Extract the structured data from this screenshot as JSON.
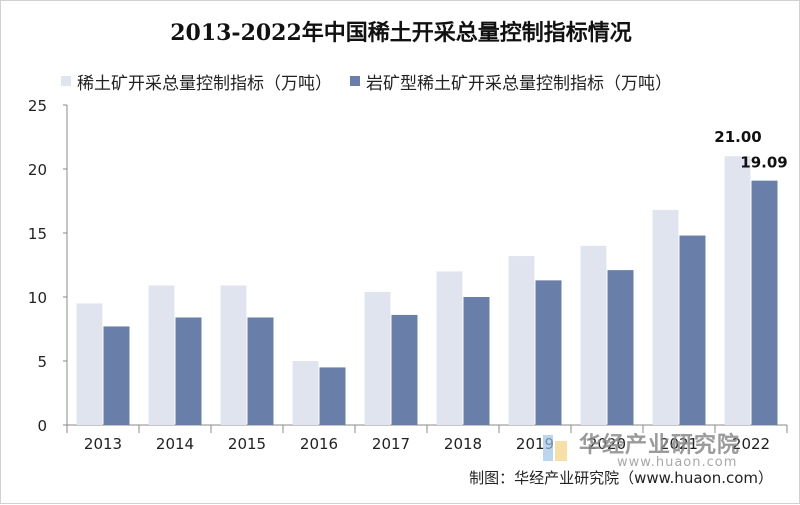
{
  "chart_data": {
    "type": "bar",
    "title": "2013-2022年中国稀土开采总量控制指标情况",
    "categories": [
      "2013",
      "2014",
      "2015",
      "2016",
      "2017",
      "2018",
      "2019",
      "2020",
      "2021",
      "2022"
    ],
    "series": [
      {
        "name": "稀土矿开采总量控制指标（万吨）",
        "color": "#e0e4ee",
        "values": [
          9.5,
          10.9,
          10.9,
          5.0,
          10.4,
          12.0,
          13.2,
          14.0,
          16.8,
          21.0
        ]
      },
      {
        "name": "岩矿型稀土矿开采总量控制指标（万吨）",
        "color": "#697ea8",
        "values": [
          7.7,
          8.4,
          8.4,
          4.5,
          8.6,
          10.0,
          11.3,
          12.1,
          14.8,
          19.09
        ]
      }
    ],
    "data_labels": [
      {
        "category": "2022",
        "series": 0,
        "text": "21.00"
      },
      {
        "category": "2022",
        "series": 1,
        "text": "19.09"
      }
    ],
    "ylim": [
      0,
      25
    ],
    "yticks": [
      0,
      5,
      10,
      15,
      20,
      25
    ],
    "xlabel": "",
    "ylabel": "",
    "grid": false,
    "legend_position": "top"
  },
  "credit": "制图：华经产业研究院（www.huaon.com）",
  "watermark": {
    "brand": "华经产业研究院",
    "url": "www.huaon.com"
  }
}
